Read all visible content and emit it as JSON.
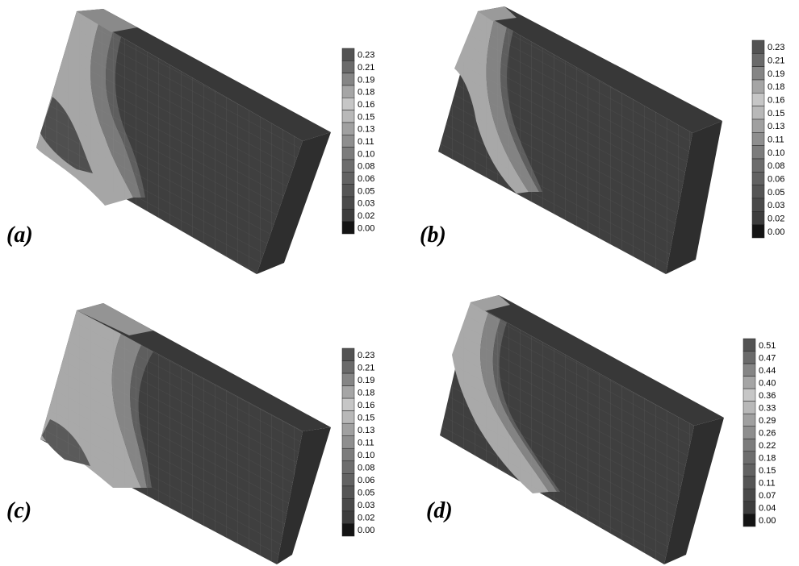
{
  "panels": [
    {
      "label": "(a)",
      "legend": [
        "0.23",
        "0.21",
        "0.19",
        "0.18",
        "0.16",
        "0.15",
        "0.13",
        "0.11",
        "0.10",
        "0.08",
        "0.06",
        "0.05",
        "0.03",
        "0.02",
        "0.00"
      ]
    },
    {
      "label": "(b)",
      "legend": [
        "0.23",
        "0.21",
        "0.19",
        "0.18",
        "0.16",
        "0.15",
        "0.13",
        "0.11",
        "0.10",
        "0.08",
        "0.06",
        "0.05",
        "0.03",
        "0.02",
        "0.00"
      ]
    },
    {
      "label": "(c)",
      "legend": [
        "0.23",
        "0.21",
        "0.19",
        "0.18",
        "0.16",
        "0.15",
        "0.13",
        "0.11",
        "0.10",
        "0.08",
        "0.06",
        "0.05",
        "0.03",
        "0.02",
        "0.00"
      ]
    },
    {
      "label": "(d)",
      "legend": [
        "0.51",
        "0.47",
        "0.44",
        "0.40",
        "0.36",
        "0.33",
        "0.29",
        "0.26",
        "0.22",
        "0.18",
        "0.15",
        "0.11",
        "0.07",
        "0.04",
        "0.00"
      ]
    }
  ],
  "legend_colors": [
    "#535353",
    "#6a6a6a",
    "#858585",
    "#a5a5a5",
    "#c6c6c6",
    "#b8b8b8",
    "#a0a0a0",
    "#8e8e8e",
    "#7c7c7c",
    "#6d6d6d",
    "#626262",
    "#555555",
    "#4a4a4a",
    "#3d3d3d",
    "#141414"
  ]
}
